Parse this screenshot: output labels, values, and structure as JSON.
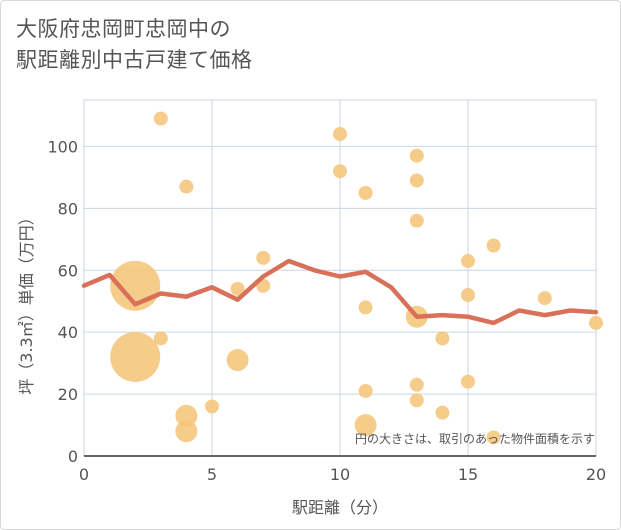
{
  "title_lines": [
    "大阪府忠岡町忠岡中の",
    "駅距離別中古戸建て価格"
  ],
  "chart_data": {
    "type": "scatter",
    "title": "大阪府忠岡町忠岡中の駅距離別中古戸建て価格",
    "xlabel": "駅距離（分）",
    "ylabel": "坪（3.3㎡）単価（万円）",
    "xlim": [
      0,
      20
    ],
    "ylim": [
      0,
      115
    ],
    "xticks": [
      0,
      5,
      10,
      15,
      20
    ],
    "yticks": [
      0,
      20,
      40,
      60,
      80,
      100
    ],
    "grid": true,
    "annotation": "円の大きさは、取引のあった物件面積を示す",
    "colors": {
      "bubble": "#f5c57a",
      "line": "#d9705a",
      "grid": "#c9d6e0",
      "text": "#555555"
    },
    "bubbles": [
      {
        "x": 2,
        "y": 55,
        "size": 5
      },
      {
        "x": 2,
        "y": 32,
        "size": 5
      },
      {
        "x": 3,
        "y": 109,
        "size": 1
      },
      {
        "x": 3,
        "y": 38,
        "size": 1
      },
      {
        "x": 4,
        "y": 87,
        "size": 1
      },
      {
        "x": 4,
        "y": 13,
        "size": 2
      },
      {
        "x": 4,
        "y": 8,
        "size": 2
      },
      {
        "x": 5,
        "y": 16,
        "size": 1
      },
      {
        "x": 6,
        "y": 54,
        "size": 1
      },
      {
        "x": 6,
        "y": 31,
        "size": 2
      },
      {
        "x": 7,
        "y": 64,
        "size": 1
      },
      {
        "x": 7,
        "y": 55,
        "size": 1
      },
      {
        "x": 10,
        "y": 104,
        "size": 1
      },
      {
        "x": 10,
        "y": 92,
        "size": 1
      },
      {
        "x": 11,
        "y": 85,
        "size": 1
      },
      {
        "x": 11,
        "y": 48,
        "size": 1
      },
      {
        "x": 11,
        "y": 21,
        "size": 1
      },
      {
        "x": 11,
        "y": 10,
        "size": 2
      },
      {
        "x": 13,
        "y": 97,
        "size": 1
      },
      {
        "x": 13,
        "y": 89,
        "size": 1
      },
      {
        "x": 13,
        "y": 76,
        "size": 1
      },
      {
        "x": 13,
        "y": 45,
        "size": 2
      },
      {
        "x": 13,
        "y": 23,
        "size": 1
      },
      {
        "x": 13,
        "y": 18,
        "size": 1
      },
      {
        "x": 14,
        "y": 38,
        "size": 1
      },
      {
        "x": 14,
        "y": 14,
        "size": 1
      },
      {
        "x": 15,
        "y": 63,
        "size": 1
      },
      {
        "x": 15,
        "y": 52,
        "size": 1
      },
      {
        "x": 15,
        "y": 24,
        "size": 1
      },
      {
        "x": 16,
        "y": 68,
        "size": 1
      },
      {
        "x": 16,
        "y": 6,
        "size": 1
      },
      {
        "x": 18,
        "y": 51,
        "size": 1
      },
      {
        "x": 20,
        "y": 43,
        "size": 1
      }
    ],
    "line": {
      "x": [
        0,
        1,
        2,
        3,
        4,
        5,
        6,
        7,
        8,
        9,
        10,
        11,
        12,
        13,
        14,
        15,
        16,
        17,
        18,
        19,
        20
      ],
      "y": [
        55,
        58.5,
        49,
        52.5,
        51.5,
        54.5,
        50.5,
        58,
        63,
        60,
        58,
        59.5,
        54.5,
        45,
        45.5,
        45,
        43,
        47,
        45.5,
        47,
        46.5
      ]
    }
  }
}
